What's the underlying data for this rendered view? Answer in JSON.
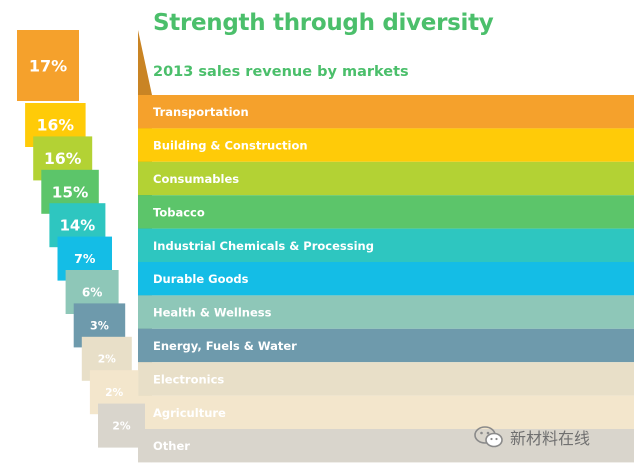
{
  "header": {
    "title": "Strength through diversity",
    "subtitle": "2013 sales revenue by markets"
  },
  "watermark": {
    "text": "新材料在线",
    "icon": "wechat-icon"
  },
  "chart_data": {
    "type": "bar",
    "title": "Strength through diversity",
    "subtitle": "2013 sales revenue by markets",
    "categories": [
      "Transportation",
      "Building & Construction",
      "Consumables",
      "Tobacco",
      "Industrial Chemicals & Processing",
      "Durable Goods",
      "Health & Wellness",
      "Energy, Fuels & Water",
      "Electronics",
      "Agriculture",
      "Other"
    ],
    "values": [
      17,
      16,
      16,
      15,
      14,
      7,
      6,
      3,
      2,
      2,
      2
    ],
    "value_labels": [
      "17%",
      "16%",
      "16%",
      "15%",
      "14%",
      "7%",
      "6%",
      "3%",
      "2%",
      "2%",
      "2%"
    ],
    "unit": "%",
    "colors": [
      "#f5a12c",
      "#ffcb08",
      "#b3d234",
      "#5cc56a",
      "#2ec6c0",
      "#14bde6",
      "#8ec7b8",
      "#6e9aac",
      "#e8dfc8",
      "#f3e6cc",
      "#d9d5cc"
    ],
    "label_colors": [
      "#ffffff",
      "#ffffff",
      "#ffffff",
      "#ffffff",
      "#ffffff",
      "#ffffff",
      "#ffffff",
      "#ffffff",
      "#ffffff",
      "#ffffff",
      "#ffffff"
    ]
  }
}
